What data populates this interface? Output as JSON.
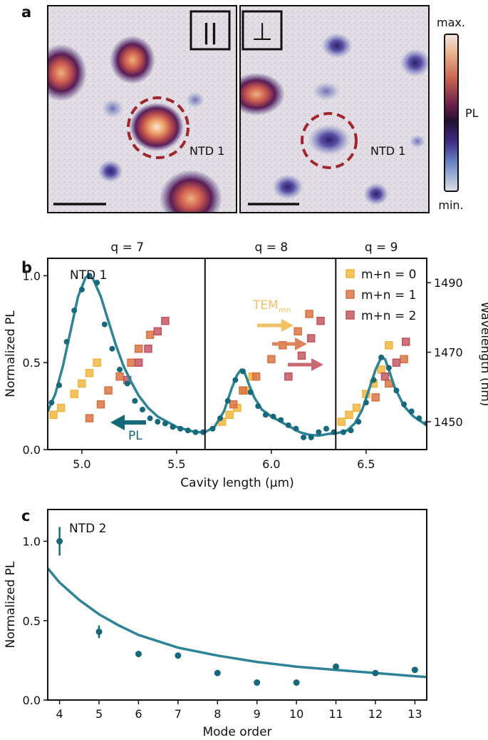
{
  "panel_labels": {
    "a": "a",
    "b": "b",
    "c": "c"
  },
  "colors": {
    "pl": "#2e8496",
    "pl_dark": "#16697a",
    "m0": "#f1b43c",
    "m1": "#d9703f",
    "m2": "#c0535d",
    "circle": "#a0272d",
    "temn": "#f3c162",
    "arrow_m1": "#dd855a",
    "arrow_m2": "#c96a70"
  },
  "panel_a": {
    "polarizers": [
      "||",
      "⊥"
    ],
    "annotations": [
      "NTD 1",
      "NTD 1"
    ],
    "colorbar": {
      "label": "PL",
      "max_label": "max.",
      "min_label": "min."
    }
  },
  "chart_data": [
    {
      "type": "line",
      "panel": "b",
      "title": "",
      "xlabel": "Cavity length (µm)",
      "ylabel": "Normalized PL",
      "y2label": "Wavelength (nm)",
      "xlim": [
        4.82,
        6.82
      ],
      "ylim": [
        0.0,
        1.1
      ],
      "y2lim": [
        1442,
        1497
      ],
      "xticks": [
        5.0,
        5.5,
        6.0,
        6.5
      ],
      "xtick_labels": [
        "5.0",
        "5.5",
        "6.0",
        "6.5"
      ],
      "yticks": [
        0.0,
        0.5,
        1.0
      ],
      "ytick_labels": [
        "0.0",
        "0.5",
        "1.0"
      ],
      "y2ticks": [
        1450,
        1470,
        1490
      ],
      "y2tick_labels": [
        "1450",
        "1470",
        "1490"
      ],
      "dividers": [
        5.65,
        6.34
      ],
      "q_labels": [
        {
          "x": 5.24,
          "text": "q = 7"
        },
        {
          "x": 6.0,
          "text": "q = 8"
        },
        {
          "x": 6.58,
          "text": "q = 9"
        }
      ],
      "text_labels": {
        "sample": "NTD 1",
        "pl_label": "PL",
        "tem_main": "TEM",
        "tem_sub": "mn"
      },
      "legend": [
        "m+n = 0",
        "m+n = 1",
        "m+n = 2"
      ],
      "pl_points": {
        "x": [
          4.84,
          4.88,
          4.92,
          4.96,
          5.0,
          5.04,
          5.08,
          5.12,
          5.16,
          5.2,
          5.24,
          5.28,
          5.32,
          5.36,
          5.4,
          5.44,
          5.48,
          5.52,
          5.56,
          5.6,
          5.64,
          5.69,
          5.73,
          5.77,
          5.81,
          5.85,
          5.89,
          5.93,
          5.97,
          6.01,
          6.05,
          6.09,
          6.13,
          6.17,
          6.21,
          6.25,
          6.29,
          6.33,
          6.38,
          6.42,
          6.46,
          6.5,
          6.54,
          6.58,
          6.62,
          6.66,
          6.7,
          6.74,
          6.78,
          6.82
        ],
        "y": [
          0.27,
          0.37,
          0.62,
          0.8,
          0.92,
          1.0,
          0.96,
          0.72,
          0.58,
          0.46,
          0.38,
          0.28,
          0.23,
          0.18,
          0.16,
          0.15,
          0.13,
          0.12,
          0.11,
          0.1,
          0.1,
          0.12,
          0.18,
          0.28,
          0.4,
          0.45,
          0.33,
          0.25,
          0.2,
          0.19,
          0.17,
          0.14,
          0.12,
          0.07,
          0.07,
          0.1,
          0.12,
          0.1,
          0.1,
          0.11,
          0.16,
          0.27,
          0.4,
          0.53,
          0.47,
          0.34,
          0.26,
          0.22,
          0.18,
          0.15
        ]
      },
      "pl_fit": {
        "x": [
          4.82,
          4.86,
          4.9,
          4.94,
          4.98,
          5.02,
          5.04,
          5.06,
          5.1,
          5.14,
          5.18,
          5.22,
          5.26,
          5.3,
          5.35,
          5.4,
          5.45,
          5.5,
          5.55,
          5.6,
          5.65,
          5.7,
          5.75,
          5.79,
          5.82,
          5.84,
          5.86,
          5.88,
          5.91,
          5.95,
          6.0,
          6.05,
          6.1,
          6.15,
          6.2,
          6.25,
          6.3,
          6.35,
          6.4,
          6.44,
          6.48,
          6.52,
          6.55,
          6.58,
          6.6,
          6.62,
          6.65,
          6.7,
          6.75,
          6.82
        ],
        "y": [
          0.22,
          0.32,
          0.48,
          0.68,
          0.88,
          0.99,
          1.0,
          0.98,
          0.88,
          0.74,
          0.6,
          0.48,
          0.39,
          0.31,
          0.24,
          0.19,
          0.16,
          0.13,
          0.115,
          0.1,
          0.1,
          0.13,
          0.22,
          0.35,
          0.43,
          0.46,
          0.44,
          0.38,
          0.3,
          0.23,
          0.19,
          0.16,
          0.13,
          0.1,
          0.085,
          0.08,
          0.09,
          0.095,
          0.11,
          0.15,
          0.23,
          0.36,
          0.46,
          0.53,
          0.52,
          0.46,
          0.36,
          0.25,
          0.19,
          0.14
        ]
      },
      "series_wavelength": [
        {
          "name": "m+n = 0",
          "x": [
            4.85,
            4.89,
            4.96,
            5.0,
            5.04,
            5.08,
            5.74,
            5.78,
            5.82,
            5.86,
            5.9,
            6.37,
            6.41,
            6.45,
            6.5,
            6.54,
            6.58,
            6.62
          ],
          "y": [
            1452,
            1454,
            1458,
            1461,
            1464,
            1467,
            1450,
            1452,
            1454,
            1459,
            1463,
            1450,
            1452,
            1454,
            1458,
            1461,
            1465,
            1472
          ]
        },
        {
          "name": "m+n = 1",
          "x": [
            5.04,
            5.1,
            5.14,
            5.2,
            5.26,
            5.3,
            5.36,
            5.8,
            5.85,
            5.92,
            6.0,
            6.06,
            6.14,
            6.2,
            6.55,
            6.62,
            6.7
          ],
          "y": [
            1451,
            1455,
            1459,
            1463,
            1467,
            1471,
            1475,
            1455,
            1459,
            1463,
            1468,
            1472,
            1476,
            1481,
            1457,
            1461,
            1468
          ]
        },
        {
          "name": "m+n = 2",
          "x": [
            5.24,
            5.3,
            5.35,
            5.4,
            5.44,
            6.09,
            6.16,
            6.21,
            6.26,
            6.6,
            6.66,
            6.71
          ],
          "y": [
            1462,
            1467,
            1471,
            1476,
            1479,
            1463,
            1469,
            1474,
            1479,
            1463,
            1467,
            1473
          ]
        }
      ]
    },
    {
      "type": "scatter",
      "panel": "c",
      "title": "",
      "xlabel": "Mode order",
      "ylabel": "Normalized PL",
      "xlim": [
        3.7,
        13.3
      ],
      "ylim": [
        0.0,
        1.2
      ],
      "xticks": [
        4,
        5,
        6,
        7,
        8,
        9,
        10,
        11,
        12,
        13
      ],
      "xtick_labels": [
        "4",
        "5",
        "6",
        "7",
        "8",
        "9",
        "10",
        "11",
        "12",
        "13"
      ],
      "yticks": [
        0.0,
        0.5,
        1.0
      ],
      "ytick_labels": [
        "0.0",
        "0.5",
        "1.0"
      ],
      "text_labels": {
        "sample": "NTD 2"
      },
      "points": {
        "x": [
          4,
          5,
          6,
          7,
          8,
          9,
          10,
          11,
          12,
          13
        ],
        "y": [
          1.0,
          0.43,
          0.29,
          0.28,
          0.17,
          0.11,
          0.11,
          0.21,
          0.17,
          0.19
        ],
        "err": [
          0.09,
          0.04,
          0.02,
          0.02,
          0.01,
          0.01,
          0.01,
          0.02,
          0.01,
          0.01
        ]
      },
      "fit": {
        "x": [
          3.7,
          4.0,
          4.5,
          5.0,
          5.5,
          6.0,
          6.5,
          7.0,
          8.0,
          9.0,
          10.0,
          11.0,
          12.0,
          13.0,
          13.3
        ],
        "y": [
          0.83,
          0.74,
          0.63,
          0.54,
          0.47,
          0.41,
          0.37,
          0.33,
          0.28,
          0.24,
          0.21,
          0.19,
          0.17,
          0.15,
          0.145
        ]
      }
    }
  ]
}
